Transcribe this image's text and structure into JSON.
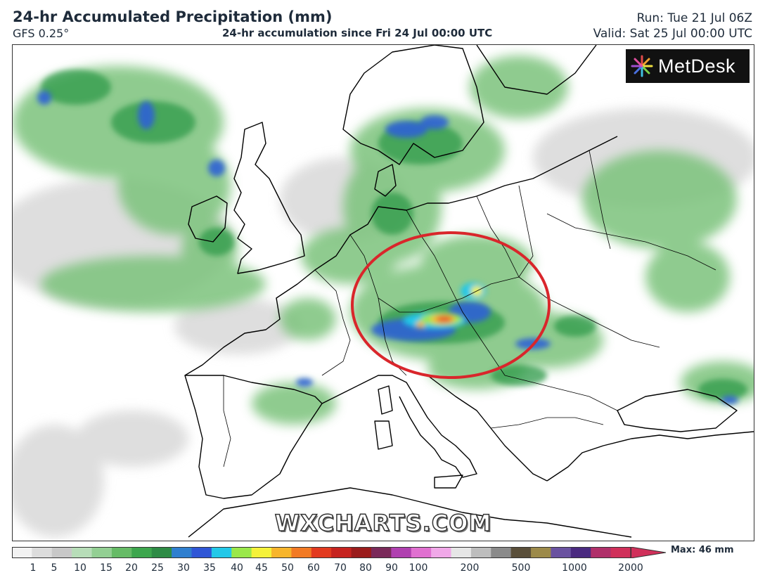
{
  "header": {
    "title": "24-hr Accumulated Precipitation (mm)",
    "model": "GFS 0.25°",
    "subtitle": "24-hr accumulation since Fri 24 Jul 00:00 UTC",
    "run": "Run: Tue 21 Jul 06Z",
    "valid": "Valid: Sat 25 Jul 00:00 UTC"
  },
  "logo": {
    "text": "MetDesk",
    "icon": "metdesk-burst-logo-icon"
  },
  "watermark": "WXCHARTS.COM",
  "highlight": {
    "shape": "ellipse",
    "color": "#d9262b",
    "region": "Alps / Central Europe"
  },
  "colorbar": {
    "ticks": [
      "1",
      "5",
      "10",
      "15",
      "20",
      "25",
      "30",
      "35",
      "40",
      "45",
      "50",
      "60",
      "70",
      "80",
      "90",
      "100",
      "200",
      "500",
      "1000",
      "2000"
    ],
    "max_label": "Max: 46 mm",
    "colors": [
      "#f2f2f2",
      "#dcdcdc",
      "#c8c8c8",
      "#b7ddb8",
      "#93cf93",
      "#66bb66",
      "#3da64d",
      "#2e8b45",
      "#2f7fcf",
      "#2f56d6",
      "#23c8e8",
      "#9ae84a",
      "#f5f23a",
      "#f7b52c",
      "#f27a24",
      "#e23a1f",
      "#c6231f",
      "#9a1c1c",
      "#7a2a5a",
      "#b040b0",
      "#e070d0",
      "#f0a8e8",
      "#e6e6e6",
      "#bdbdbd",
      "#8a8a8a",
      "#5a4f3a",
      "#9c8a4a",
      "#6a52a0",
      "#4a2a80",
      "#b0306a",
      "#d0305a"
    ]
  }
}
